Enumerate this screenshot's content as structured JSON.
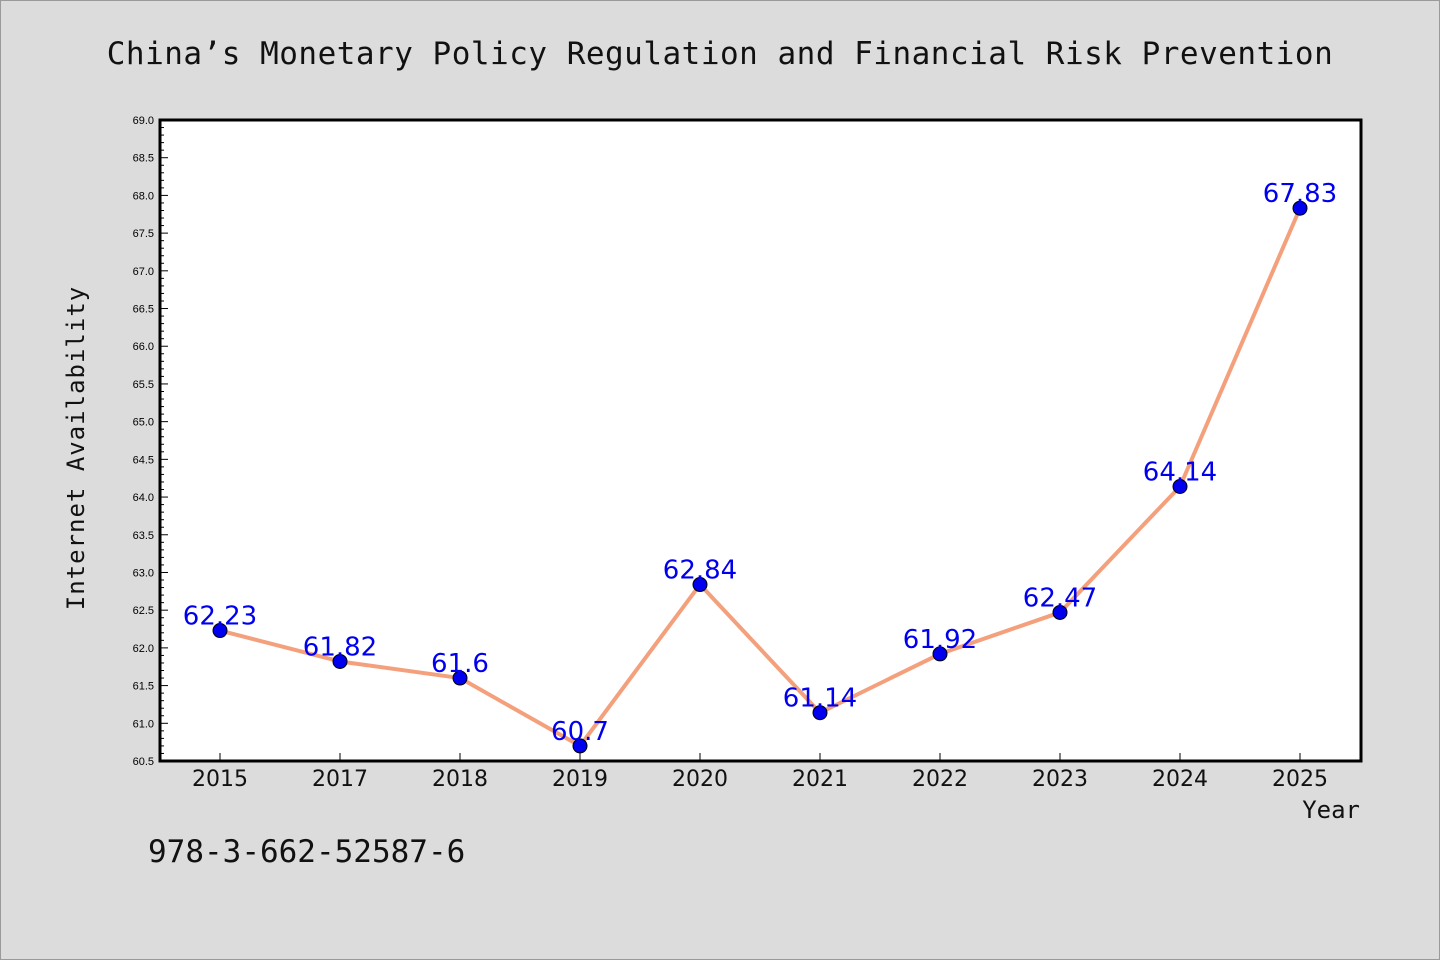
{
  "chart_data": {
    "type": "line",
    "title": "China’s Monetary Policy Regulation and Financial Risk Prevention",
    "xlabel": "Year",
    "ylabel": "Internet Availability",
    "categories": [
      "2015",
      "2017",
      "2018",
      "2019",
      "2020",
      "2021",
      "2022",
      "2023",
      "2024",
      "2025"
    ],
    "values": [
      62.23,
      61.82,
      61.6,
      60.7,
      62.84,
      61.14,
      61.92,
      62.47,
      64.14,
      67.83
    ],
    "data_labels": [
      "62.23",
      "61.82",
      "61.6",
      "60.7",
      "62.84",
      "61.14",
      "61.92",
      "62.47",
      "64.14",
      "67.83"
    ],
    "ylim": [
      60.5,
      69.0
    ],
    "y_ticks": [
      "60.5",
      "61.0",
      "61.5",
      "62.0",
      "62.5",
      "63.0",
      "63.5",
      "64.0",
      "64.5",
      "65.0",
      "65.5",
      "66.0",
      "66.5",
      "67.0",
      "67.5",
      "68.0",
      "68.5",
      "69.0"
    ],
    "grid": false,
    "legend": "none",
    "colors": {
      "line": "#f4a07c",
      "marker": "#0000ee",
      "data_label": "#0000ee",
      "background": "#dcdcdc",
      "plot_background": "#ffffff"
    }
  },
  "footer": {
    "isbn": "978-3-662-52587-6"
  }
}
